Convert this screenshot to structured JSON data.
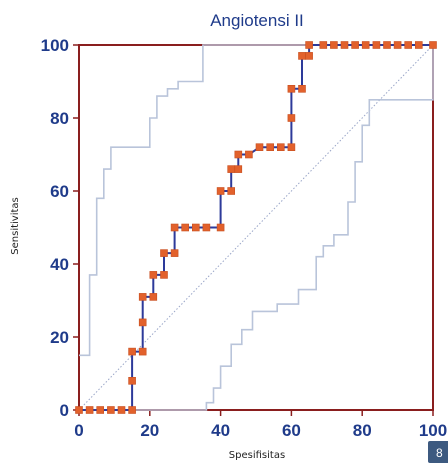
{
  "chart_data": {
    "type": "line",
    "title": "Angiotensi II",
    "xlabel": "Spesifisitas",
    "ylabel": "Sensitivitas",
    "xlim": [
      0,
      100
    ],
    "ylim": [
      0,
      100
    ],
    "xticks": [
      "0",
      "20",
      "40",
      "60",
      "80",
      "100"
    ],
    "yticks": [
      "0",
      "20",
      "40",
      "60",
      "80",
      "100"
    ],
    "grid": false,
    "legend": "none",
    "series": [
      {
        "role": "roc",
        "color": "#e2612c",
        "line_color": "#2d3a9a",
        "marker": "square",
        "points": [
          [
            0,
            0
          ],
          [
            3,
            0
          ],
          [
            6,
            0
          ],
          [
            9,
            0
          ],
          [
            12,
            0
          ],
          [
            15,
            0
          ],
          [
            15,
            8
          ],
          [
            15,
            16
          ],
          [
            18,
            16
          ],
          [
            18,
            24
          ],
          [
            18,
            31
          ],
          [
            21,
            31
          ],
          [
            21,
            37
          ],
          [
            24,
            37
          ],
          [
            24,
            43
          ],
          [
            27,
            43
          ],
          [
            27,
            50
          ],
          [
            30,
            50
          ],
          [
            33,
            50
          ],
          [
            36,
            50
          ],
          [
            40,
            50
          ],
          [
            40,
            60
          ],
          [
            43,
            60
          ],
          [
            43,
            66
          ],
          [
            45,
            66
          ],
          [
            45,
            70
          ],
          [
            48,
            70
          ],
          [
            51,
            72
          ],
          [
            54,
            72
          ],
          [
            57,
            72
          ],
          [
            60,
            72
          ],
          [
            60,
            80
          ],
          [
            60,
            88
          ],
          [
            63,
            88
          ],
          [
            63,
            97
          ],
          [
            65,
            97
          ],
          [
            65,
            100
          ],
          [
            69,
            100
          ],
          [
            72,
            100
          ],
          [
            75,
            100
          ],
          [
            78,
            100
          ],
          [
            81,
            100
          ],
          [
            84,
            100
          ],
          [
            87,
            100
          ],
          [
            90,
            100
          ],
          [
            93,
            100
          ],
          [
            96,
            100
          ],
          [
            100,
            100
          ]
        ]
      },
      {
        "role": "confidence-upper",
        "color": "#b9c4da",
        "points": [
          [
            0,
            15
          ],
          [
            3,
            15
          ],
          [
            3,
            37
          ],
          [
            5,
            37
          ],
          [
            5,
            58
          ],
          [
            7,
            58
          ],
          [
            7,
            66
          ],
          [
            9,
            66
          ],
          [
            9,
            72
          ],
          [
            11,
            72
          ],
          [
            20,
            72
          ],
          [
            20,
            80
          ],
          [
            22,
            80
          ],
          [
            22,
            86
          ],
          [
            25,
            86
          ],
          [
            25,
            88
          ],
          [
            28,
            88
          ],
          [
            28,
            90
          ],
          [
            35,
            90
          ],
          [
            35,
            100
          ],
          [
            55,
            100
          ],
          [
            100,
            100
          ]
        ]
      },
      {
        "role": "confidence-lower",
        "color": "#b9c4da",
        "points": [
          [
            0,
            0
          ],
          [
            36,
            0
          ],
          [
            36,
            2
          ],
          [
            38,
            2
          ],
          [
            38,
            6
          ],
          [
            40,
            6
          ],
          [
            40,
            12
          ],
          [
            43,
            12
          ],
          [
            43,
            18
          ],
          [
            46,
            18
          ],
          [
            46,
            22
          ],
          [
            49,
            22
          ],
          [
            49,
            27
          ],
          [
            56,
            27
          ],
          [
            56,
            29
          ],
          [
            62,
            29
          ],
          [
            62,
            33
          ],
          [
            67,
            33
          ],
          [
            67,
            42
          ],
          [
            69,
            42
          ],
          [
            69,
            45
          ],
          [
            72,
            45
          ],
          [
            72,
            48
          ],
          [
            76,
            48
          ],
          [
            76,
            57
          ],
          [
            78,
            57
          ],
          [
            78,
            68
          ],
          [
            80,
            68
          ],
          [
            80,
            78
          ],
          [
            82,
            78
          ],
          [
            82,
            85
          ],
          [
            100,
            85
          ],
          [
            100,
            100
          ]
        ]
      },
      {
        "role": "diagonal",
        "color": "#9aa6c8",
        "points": [
          [
            0,
            0
          ],
          [
            100,
            100
          ]
        ]
      }
    ]
  },
  "badge": "8"
}
